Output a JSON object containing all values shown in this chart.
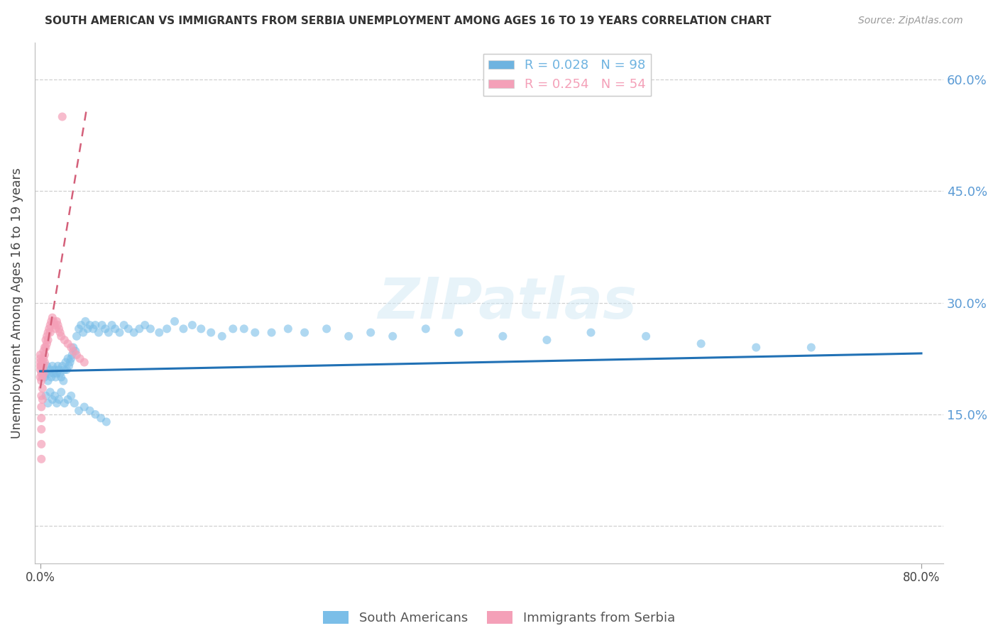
{
  "title": "SOUTH AMERICAN VS IMMIGRANTS FROM SERBIA UNEMPLOYMENT AMONG AGES 16 TO 19 YEARS CORRELATION CHART",
  "source": "Source: ZipAtlas.com",
  "ylabel_label": "Unemployment Among Ages 16 to 19 years",
  "ylabel_ticks": [
    0.0,
    0.15,
    0.3,
    0.45,
    0.6
  ],
  "ylabel_tick_labels": [
    "",
    "15.0%",
    "30.0%",
    "45.0%",
    "60.0%"
  ],
  "xlim": [
    -0.005,
    0.82
  ],
  "ylim": [
    -0.05,
    0.65
  ],
  "xticks": [
    0.0,
    0.8
  ],
  "xticklabels": [
    "0.0%",
    "80.0%"
  ],
  "legend_entries": [
    {
      "label": "R = 0.028   N = 98",
      "color": "#6eb3e0"
    },
    {
      "label": "R = 0.254   N = 54",
      "color": "#f4a0b8"
    }
  ],
  "legend_labels": [
    "South Americans",
    "Immigrants from Serbia"
  ],
  "watermark": "ZIPatlas",
  "blue_scatter": {
    "color": "#7bbee8",
    "alpha": 0.6,
    "size": 75,
    "x": [
      0.003,
      0.004,
      0.005,
      0.006,
      0.007,
      0.008,
      0.009,
      0.01,
      0.011,
      0.012,
      0.013,
      0.014,
      0.015,
      0.016,
      0.017,
      0.018,
      0.019,
      0.02,
      0.021,
      0.022,
      0.023,
      0.024,
      0.025,
      0.026,
      0.027,
      0.028,
      0.029,
      0.03,
      0.032,
      0.033,
      0.035,
      0.037,
      0.039,
      0.041,
      0.043,
      0.045,
      0.048,
      0.05,
      0.053,
      0.056,
      0.059,
      0.062,
      0.065,
      0.068,
      0.072,
      0.076,
      0.08,
      0.085,
      0.09,
      0.095,
      0.1,
      0.108,
      0.115,
      0.122,
      0.13,
      0.138,
      0.146,
      0.155,
      0.165,
      0.175,
      0.185,
      0.195,
      0.21,
      0.225,
      0.24,
      0.26,
      0.28,
      0.3,
      0.32,
      0.35,
      0.38,
      0.42,
      0.46,
      0.5,
      0.55,
      0.6,
      0.65,
      0.7,
      0.005,
      0.007,
      0.009,
      0.011,
      0.013,
      0.015,
      0.017,
      0.019,
      0.022,
      0.025,
      0.028,
      0.031,
      0.035,
      0.04,
      0.045,
      0.05,
      0.055,
      0.06
    ],
    "y": [
      0.21,
      0.2,
      0.205,
      0.215,
      0.195,
      0.205,
      0.21,
      0.2,
      0.215,
      0.205,
      0.21,
      0.2,
      0.205,
      0.215,
      0.21,
      0.205,
      0.2,
      0.215,
      0.195,
      0.21,
      0.22,
      0.21,
      0.225,
      0.215,
      0.22,
      0.225,
      0.23,
      0.24,
      0.235,
      0.255,
      0.265,
      0.27,
      0.26,
      0.275,
      0.265,
      0.27,
      0.265,
      0.27,
      0.26,
      0.27,
      0.265,
      0.26,
      0.27,
      0.265,
      0.26,
      0.27,
      0.265,
      0.26,
      0.265,
      0.27,
      0.265,
      0.26,
      0.265,
      0.275,
      0.265,
      0.27,
      0.265,
      0.26,
      0.255,
      0.265,
      0.265,
      0.26,
      0.26,
      0.265,
      0.26,
      0.265,
      0.255,
      0.26,
      0.255,
      0.265,
      0.26,
      0.255,
      0.25,
      0.26,
      0.255,
      0.245,
      0.24,
      0.24,
      0.175,
      0.165,
      0.18,
      0.17,
      0.175,
      0.165,
      0.17,
      0.18,
      0.165,
      0.17,
      0.175,
      0.165,
      0.155,
      0.16,
      0.155,
      0.15,
      0.145,
      0.14
    ]
  },
  "pink_scatter": {
    "color": "#f4a0b8",
    "alpha": 0.7,
    "size": 75,
    "x": [
      0.0,
      0.0,
      0.0,
      0.0,
      0.0,
      0.0,
      0.001,
      0.001,
      0.001,
      0.001,
      0.001,
      0.001,
      0.001,
      0.001,
      0.001,
      0.002,
      0.002,
      0.002,
      0.002,
      0.002,
      0.003,
      0.003,
      0.003,
      0.003,
      0.004,
      0.004,
      0.004,
      0.005,
      0.005,
      0.006,
      0.006,
      0.007,
      0.007,
      0.008,
      0.009,
      0.009,
      0.01,
      0.011,
      0.012,
      0.013,
      0.014,
      0.015,
      0.016,
      0.017,
      0.018,
      0.019,
      0.02,
      0.022,
      0.025,
      0.028,
      0.03,
      0.033,
      0.036,
      0.04
    ],
    "y": [
      0.2,
      0.21,
      0.215,
      0.22,
      0.225,
      0.23,
      0.195,
      0.205,
      0.215,
      0.175,
      0.16,
      0.145,
      0.13,
      0.11,
      0.09,
      0.22,
      0.21,
      0.2,
      0.185,
      0.17,
      0.235,
      0.225,
      0.215,
      0.205,
      0.24,
      0.23,
      0.22,
      0.25,
      0.24,
      0.255,
      0.245,
      0.26,
      0.25,
      0.265,
      0.27,
      0.26,
      0.275,
      0.28,
      0.275,
      0.27,
      0.265,
      0.275,
      0.27,
      0.265,
      0.26,
      0.255,
      0.55,
      0.25,
      0.245,
      0.24,
      0.235,
      0.23,
      0.225,
      0.22
    ]
  },
  "blue_line": {
    "color": "#2171b5",
    "x_start": 0.0,
    "x_end": 0.8,
    "y_start": 0.208,
    "y_end": 0.232
  },
  "pink_line": {
    "color": "#d4607a",
    "x_start": 0.0,
    "x_end": 0.042,
    "y_start": 0.185,
    "y_end": 0.56
  },
  "grid_color": "#d0d0d0",
  "grid_linestyle": "--",
  "background_color": "#ffffff"
}
